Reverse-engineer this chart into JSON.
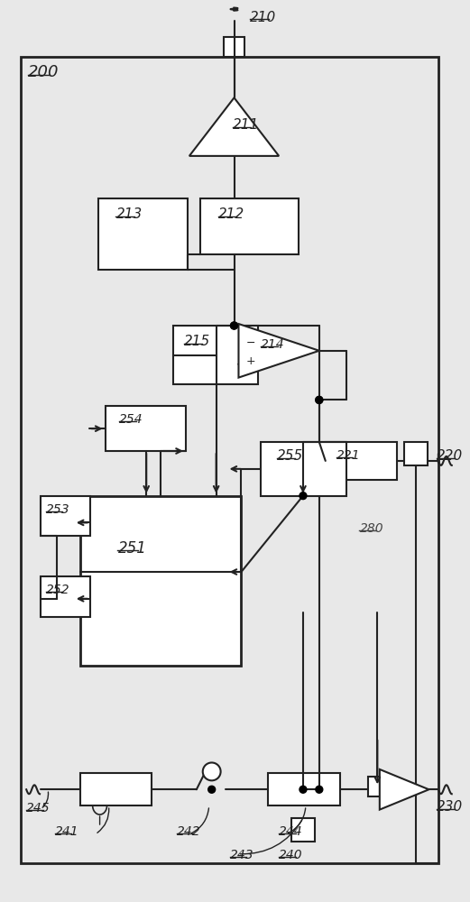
{
  "bg_color": "#e8e8e8",
  "line_color": "#222222",
  "dash_color": "#444444",
  "figsize": [
    5.21,
    10.0
  ],
  "dpi": 100
}
